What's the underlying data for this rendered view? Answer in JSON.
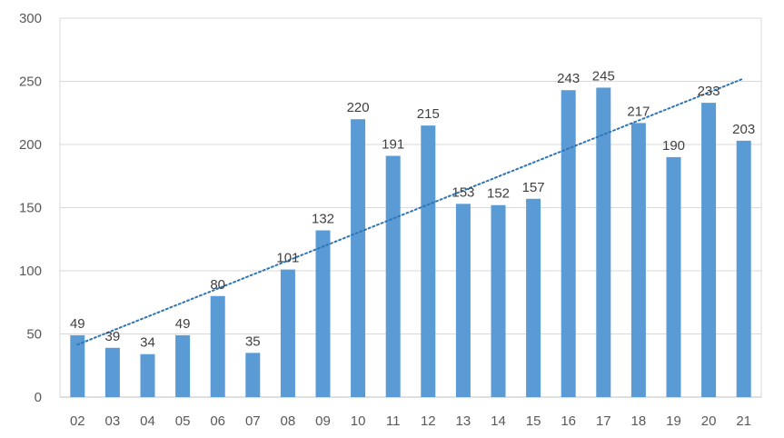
{
  "chart_data": {
    "type": "bar",
    "title": "",
    "xlabel": "",
    "ylabel": "",
    "categories": [
      "02",
      "03",
      "04",
      "05",
      "06",
      "07",
      "08",
      "09",
      "10",
      "11",
      "12",
      "13",
      "14",
      "15",
      "16",
      "17",
      "18",
      "19",
      "20",
      "21"
    ],
    "values": [
      49,
      39,
      34,
      49,
      80,
      35,
      101,
      132,
      220,
      191,
      215,
      153,
      152,
      157,
      243,
      245,
      217,
      190,
      233,
      203
    ],
    "ylim": [
      0,
      300
    ],
    "yticks": [
      0,
      50,
      100,
      150,
      200,
      250,
      300
    ],
    "grid": true,
    "legend": "none",
    "trendline": {
      "type": "linear",
      "style": "dotted"
    },
    "colors": {
      "bar": "#5b9bd5",
      "trendline": "#2e75b6",
      "grid": "#d9d9d9"
    }
  }
}
